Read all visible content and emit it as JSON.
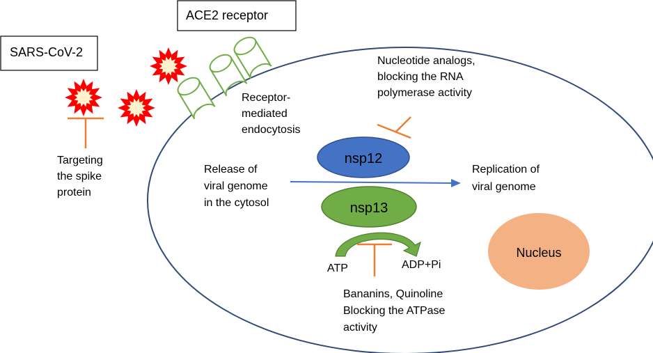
{
  "labels": {
    "sars_cov_2": "SARS-CoV-2",
    "ace2_receptor": "ACE2 receptor",
    "spike_targeting": [
      "Targeting",
      "the spike",
      "protein"
    ],
    "endocytosis": [
      "Receptor-",
      "mediated",
      "endocytosis"
    ],
    "nucleotide_analogs": [
      "Nucleotide analogs,",
      "blocking the RNA",
      "polymerase activity"
    ],
    "release": [
      "Release  of",
      "viral genome",
      "in the cytosol"
    ],
    "replication": [
      "Replication of",
      "viral genome"
    ],
    "nsp12": "nsp12",
    "nsp13": "nsp13",
    "nucleus": "Nucleus",
    "atp": "ATP",
    "adp": "ADP+Pi",
    "bananins": [
      "Bananins, Quinoline",
      "Blocking the ATPase",
      "activity"
    ]
  },
  "colors": {
    "cell_outline": "#2f4a7a",
    "nsp12_fill": "#4472c4",
    "nsp12_stroke": "#2f528f",
    "nsp13_fill": "#70ad47",
    "nsp13_stroke": "#507e32",
    "nucleus_fill": "#f4b183",
    "inhibitor": "#ed7d31",
    "receptor": "#70ad47",
    "arrow_blue": "#4472c4",
    "virus_outer": "#ff0000",
    "virus_inner": "#fff2cc"
  }
}
